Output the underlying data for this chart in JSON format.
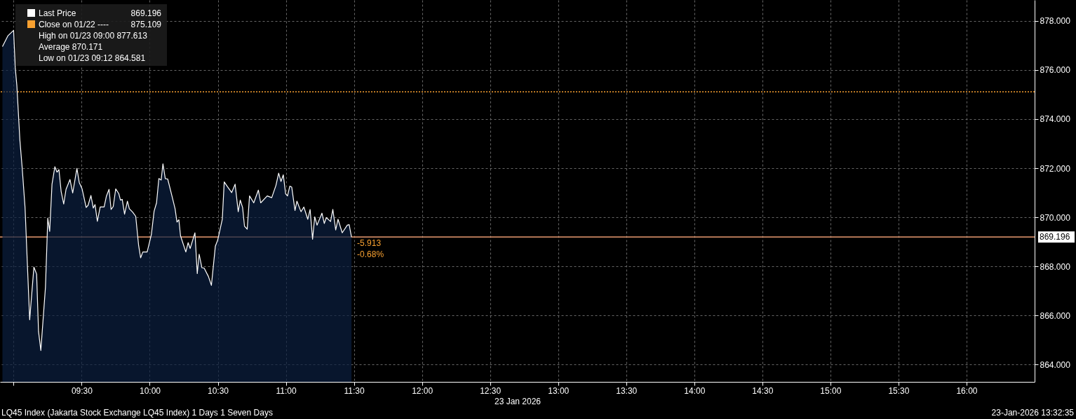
{
  "chart_data": {
    "type": "area",
    "series": [
      {
        "name": "Last Price",
        "color": "#ffffff",
        "x": [
          8.918,
          8.959,
          9.0,
          9.012,
          9.024,
          9.046,
          9.063,
          9.084,
          9.103,
          9.118,
          9.149,
          9.169,
          9.183,
          9.2,
          9.234,
          9.251,
          9.265,
          9.282,
          9.303,
          9.319,
          9.333,
          9.349,
          9.368,
          9.385,
          9.414,
          9.434,
          9.465,
          9.482,
          9.503,
          9.533,
          9.547,
          9.568,
          9.585,
          9.598,
          9.615,
          9.636,
          9.665,
          9.682,
          9.701,
          9.716,
          9.732,
          9.75,
          9.773,
          9.785,
          9.798,
          9.815,
          9.836,
          9.85,
          9.875,
          9.897,
          9.918,
          9.933,
          9.949,
          9.981,
          10.012,
          10.032,
          10.05,
          10.067,
          10.084,
          10.097,
          10.114,
          10.132,
          10.163,
          10.186,
          10.2,
          10.214,
          10.226,
          10.265,
          10.282,
          10.297,
          10.332,
          10.349,
          10.363,
          10.383,
          10.4,
          10.431,
          10.453,
          10.482,
          10.499,
          10.533,
          10.547,
          10.568,
          10.602,
          10.627,
          10.65,
          10.665,
          10.682,
          10.696,
          10.716,
          10.733,
          10.764,
          10.798,
          10.815,
          10.863,
          10.896,
          10.927,
          10.947,
          10.964,
          10.981,
          10.998,
          11.012,
          11.029,
          11.043,
          11.067,
          11.081,
          11.111,
          11.132,
          11.161,
          11.178,
          11.196,
          11.212,
          11.229,
          11.265,
          11.282,
          11.297,
          11.328,
          11.345,
          11.366,
          11.383,
          11.414,
          11.451,
          11.465,
          11.482
        ],
        "values": [
          876.95,
          877.4,
          877.613,
          876.1,
          875.35,
          873.15,
          872.01,
          870.4,
          867.83,
          865.83,
          867.97,
          867.69,
          865.35,
          864.581,
          867.16,
          869.97,
          869.43,
          871.35,
          872.06,
          871.84,
          871.94,
          871.06,
          870.54,
          871.14,
          871.54,
          870.99,
          871.99,
          871.42,
          871.16,
          870.4,
          870.49,
          870.89,
          870.38,
          870.52,
          869.84,
          870.42,
          870.42,
          870.87,
          871.14,
          870.32,
          870.44,
          871.16,
          870.96,
          870.7,
          870.73,
          870.13,
          870.66,
          870.35,
          870.21,
          870.04,
          868.87,
          868.35,
          868.59,
          868.59,
          869.3,
          870.25,
          870.59,
          871.58,
          871.52,
          872.18,
          871.58,
          871.56,
          870.87,
          870.35,
          869.81,
          869.9,
          869.25,
          868.59,
          868.97,
          868.73,
          869.37,
          867.71,
          868.5,
          867.95,
          867.93,
          867.59,
          867.23,
          868.83,
          869.07,
          869.92,
          871.44,
          871.27,
          871.01,
          871.35,
          870.23,
          870.7,
          870.4,
          869.64,
          869.52,
          870.87,
          870.59,
          871.11,
          870.59,
          870.87,
          870.8,
          871.3,
          871.8,
          871.46,
          871.73,
          870.96,
          870.87,
          871.27,
          871.23,
          870.28,
          870.66,
          870.23,
          870.42,
          869.92,
          870.32,
          869.11,
          870.02,
          869.68,
          870.17,
          869.75,
          869.99,
          869.83,
          870.32,
          869.49,
          869.92,
          869.37,
          869.68,
          869.7,
          869.196
        ]
      }
    ],
    "xlim": [
      8.9,
      16.5
    ],
    "xticks": [
      {
        "value": 9.0,
        "label": null
      },
      {
        "value": 9.5,
        "label": "09:30"
      },
      {
        "value": 10.0,
        "label": "10:00"
      },
      {
        "value": 10.5,
        "label": "10:30"
      },
      {
        "value": 11.0,
        "label": "11:00"
      },
      {
        "value": 11.5,
        "label": "11:30"
      },
      {
        "value": 12.0,
        "label": "12:00"
      },
      {
        "value": 12.5,
        "label": "12:30"
      },
      {
        "value": 13.0,
        "label": "13:00"
      },
      {
        "value": 13.5,
        "label": "13:30"
      },
      {
        "value": 14.0,
        "label": "14:00"
      },
      {
        "value": 14.5,
        "label": "14:30"
      },
      {
        "value": 15.0,
        "label": "15:00"
      },
      {
        "value": 15.5,
        "label": "15:30"
      },
      {
        "value": 16.0,
        "label": "16:00"
      }
    ],
    "ylim": [
      863.3,
      878.85
    ],
    "yticks": [
      {
        "value": 864,
        "label": "864.000"
      },
      {
        "value": 866,
        "label": "866.000"
      },
      {
        "value": 868,
        "label": "868.000"
      },
      {
        "value": 870,
        "label": "870.000"
      },
      {
        "value": 872,
        "label": "872.000"
      },
      {
        "value": 874,
        "label": "874.000"
      },
      {
        "value": 876,
        "label": "876.000"
      },
      {
        "value": 878,
        "label": "878.000"
      }
    ],
    "xlabel": "23 Jan 2026",
    "ref_lines": [
      {
        "axis": "y",
        "value": 875.109,
        "label": "Close on 01/22 ----",
        "color": "#f7a030",
        "line_style": "dotted"
      },
      {
        "axis": "y",
        "value": 869.196,
        "label": "869.196",
        "color": "#e89a70",
        "line_style": "solid"
      }
    ],
    "annotations": [
      "869.196",
      "875.109",
      "High on 01/23 09:00 877.613",
      "Average 870.171",
      "Low on 01/23 09:12 864.581",
      "LQ45 Index (Jakarta Stock Exchange LQ45 Index) 1 Days 1 Seven Days",
      "23-Jan-2026 13:32:35",
      {
        "text": "-5.913",
        "x": 11.482,
        "y": 869.196
      },
      {
        "text": "-0.68%",
        "x": 11.482,
        "y": 869.196
      }
    ],
    "grid": true,
    "legend": "top left",
    "marker": "none",
    "line_style": "solid"
  }
}
